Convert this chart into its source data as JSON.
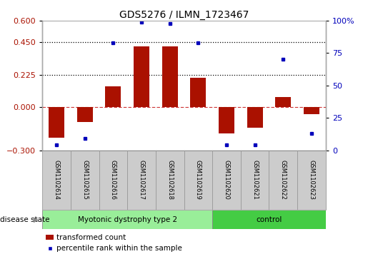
{
  "title": "GDS5276 / ILMN_1723467",
  "samples": [
    "GSM1102614",
    "GSM1102615",
    "GSM1102616",
    "GSM1102617",
    "GSM1102618",
    "GSM1102619",
    "GSM1102620",
    "GSM1102621",
    "GSM1102622",
    "GSM1102623"
  ],
  "transformed_count": [
    -0.215,
    -0.105,
    0.145,
    0.42,
    0.42,
    0.205,
    -0.185,
    -0.145,
    0.07,
    -0.05
  ],
  "percentile_rank": [
    4,
    9,
    83,
    99,
    98,
    83,
    4,
    4,
    70,
    13
  ],
  "ylim_left": [
    -0.3,
    0.6
  ],
  "ylim_right": [
    0,
    100
  ],
  "yticks_left": [
    -0.3,
    0,
    0.225,
    0.45,
    0.6
  ],
  "yticks_right": [
    0,
    25,
    50,
    75,
    100
  ],
  "hlines": [
    0.225,
    0.45
  ],
  "bar_color": "#aa1100",
  "dot_color": "#0000bb",
  "zero_line_color": "#cc3333",
  "disease_groups": [
    {
      "label": "Myotonic dystrophy type 2",
      "start": 0,
      "end": 6,
      "color": "#99ee99"
    },
    {
      "label": "control",
      "start": 6,
      "end": 10,
      "color": "#44cc44"
    }
  ],
  "sample_box_color": "#cccccc",
  "sample_box_edge": "#999999",
  "disease_state_label": "disease state",
  "legend_bar_label": "transformed count",
  "legend_dot_label": "percentile rank within the sample",
  "title_fontsize": 10,
  "axis_fontsize": 8,
  "sample_fontsize": 6,
  "legend_fontsize": 7.5
}
